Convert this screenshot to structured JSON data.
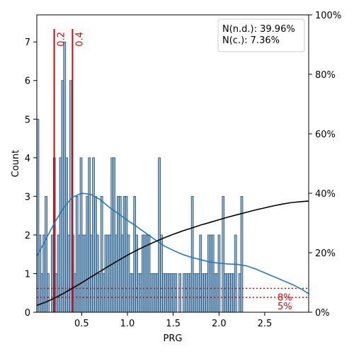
{
  "chart_data": {
    "type": "bar",
    "xlabel": "PRG",
    "ylabel": "Count",
    "xlim": [
      0.01,
      2.98
    ],
    "ylim": [
      0,
      7.7
    ],
    "y2lim": [
      0,
      100
    ],
    "x_ticks": [
      0.5,
      1.0,
      1.5,
      2.0,
      2.5
    ],
    "x_tick_labels": [
      "0.5",
      "1.0",
      "1.5",
      "2.0",
      "2.5"
    ],
    "y_ticks": [
      0,
      1,
      2,
      3,
      4,
      5,
      6,
      7
    ],
    "y_tick_labels": [
      "0",
      "1",
      "2",
      "3",
      "4",
      "5",
      "6",
      "7"
    ],
    "y2_ticks": [
      0,
      20,
      40,
      60,
      80,
      100
    ],
    "y2_tick_labels": [
      "0%",
      "20%",
      "40%",
      "60%",
      "80%",
      "100%"
    ],
    "histogram": {
      "bin_start": 0.01,
      "bin_width": 0.0225,
      "counts": [
        5,
        2,
        1,
        2,
        3,
        1,
        0,
        2,
        4,
        1,
        2,
        4,
        6,
        7,
        4,
        2,
        6,
        2,
        1,
        3,
        2,
        4,
        2,
        2,
        3,
        4,
        2,
        4,
        3,
        2,
        1,
        3,
        1,
        2,
        2,
        2,
        4,
        4,
        2,
        3,
        3,
        2,
        3,
        3,
        2,
        1,
        1,
        3,
        2,
        1,
        1,
        2,
        2,
        2,
        2,
        1,
        1,
        1,
        1,
        4,
        2,
        1,
        1,
        1,
        1,
        1,
        1,
        1,
        0,
        1,
        0,
        1,
        1,
        1,
        1,
        3,
        1,
        1,
        1,
        2,
        1,
        1,
        1,
        2,
        2,
        2,
        1,
        1,
        2,
        0,
        3,
        1,
        1,
        1,
        1,
        1,
        2,
        0,
        1,
        3
      ]
    },
    "kde_curve": {
      "x": [
        0.01,
        0.1,
        0.2,
        0.3,
        0.4,
        0.5,
        0.6,
        0.7,
        0.8,
        0.9,
        1.0,
        1.1,
        1.2,
        1.3,
        1.4,
        1.5,
        1.6,
        1.7,
        1.8,
        1.9,
        2.0,
        2.1,
        2.2,
        2.3,
        2.4,
        2.5,
        2.6,
        2.7,
        2.8,
        2.9,
        2.98
      ],
      "y": [
        1.45,
        1.85,
        2.3,
        2.7,
        2.98,
        3.08,
        3.05,
        2.92,
        2.72,
        2.55,
        2.38,
        2.22,
        2.05,
        1.88,
        1.72,
        1.6,
        1.5,
        1.42,
        1.36,
        1.3,
        1.27,
        1.25,
        1.24,
        1.2,
        1.12,
        1.02,
        0.92,
        0.82,
        0.72,
        0.6,
        0.48
      ]
    },
    "cdf_curve": {
      "x": [
        0.01,
        0.1,
        0.2,
        0.3,
        0.4,
        0.5,
        0.6,
        0.7,
        0.8,
        0.9,
        1.0,
        1.1,
        1.2,
        1.3,
        1.4,
        1.5,
        1.6,
        1.7,
        1.8,
        1.9,
        2.0,
        2.1,
        2.2,
        2.3,
        2.4,
        2.5,
        2.6,
        2.7,
        2.8,
        2.9,
        2.98
      ],
      "y_percent": [
        2.3,
        3.3,
        4.7,
        6.3,
        8.1,
        9.9,
        11.8,
        13.7,
        15.6,
        17.4,
        19.2,
        20.8,
        22.3,
        23.7,
        25.0,
        26.2,
        27.3,
        28.3,
        29.3,
        30.2,
        31.1,
        32.0,
        32.8,
        33.6,
        34.4,
        35.1,
        35.8,
        36.4,
        36.9,
        37.2,
        37.4
      ]
    },
    "vertical_lines": [
      {
        "x": 0.2,
        "label": "0.2"
      },
      {
        "x": 0.4,
        "label": "0.4"
      }
    ],
    "horizontal_lines": [
      {
        "y_percent": 8,
        "label": "8%"
      },
      {
        "y_percent": 5,
        "label": "5%"
      }
    ],
    "legend_lines": [
      "N(n.d.): 39.96%",
      "N(c.): 7.36%"
    ],
    "legend_position": "top-right",
    "colors": {
      "bar_fill": "#8fb6d4",
      "bar_edge": "#2a4f6e",
      "kde": "#2878b5",
      "cdf": "#000000",
      "markers": "#e00000"
    }
  }
}
